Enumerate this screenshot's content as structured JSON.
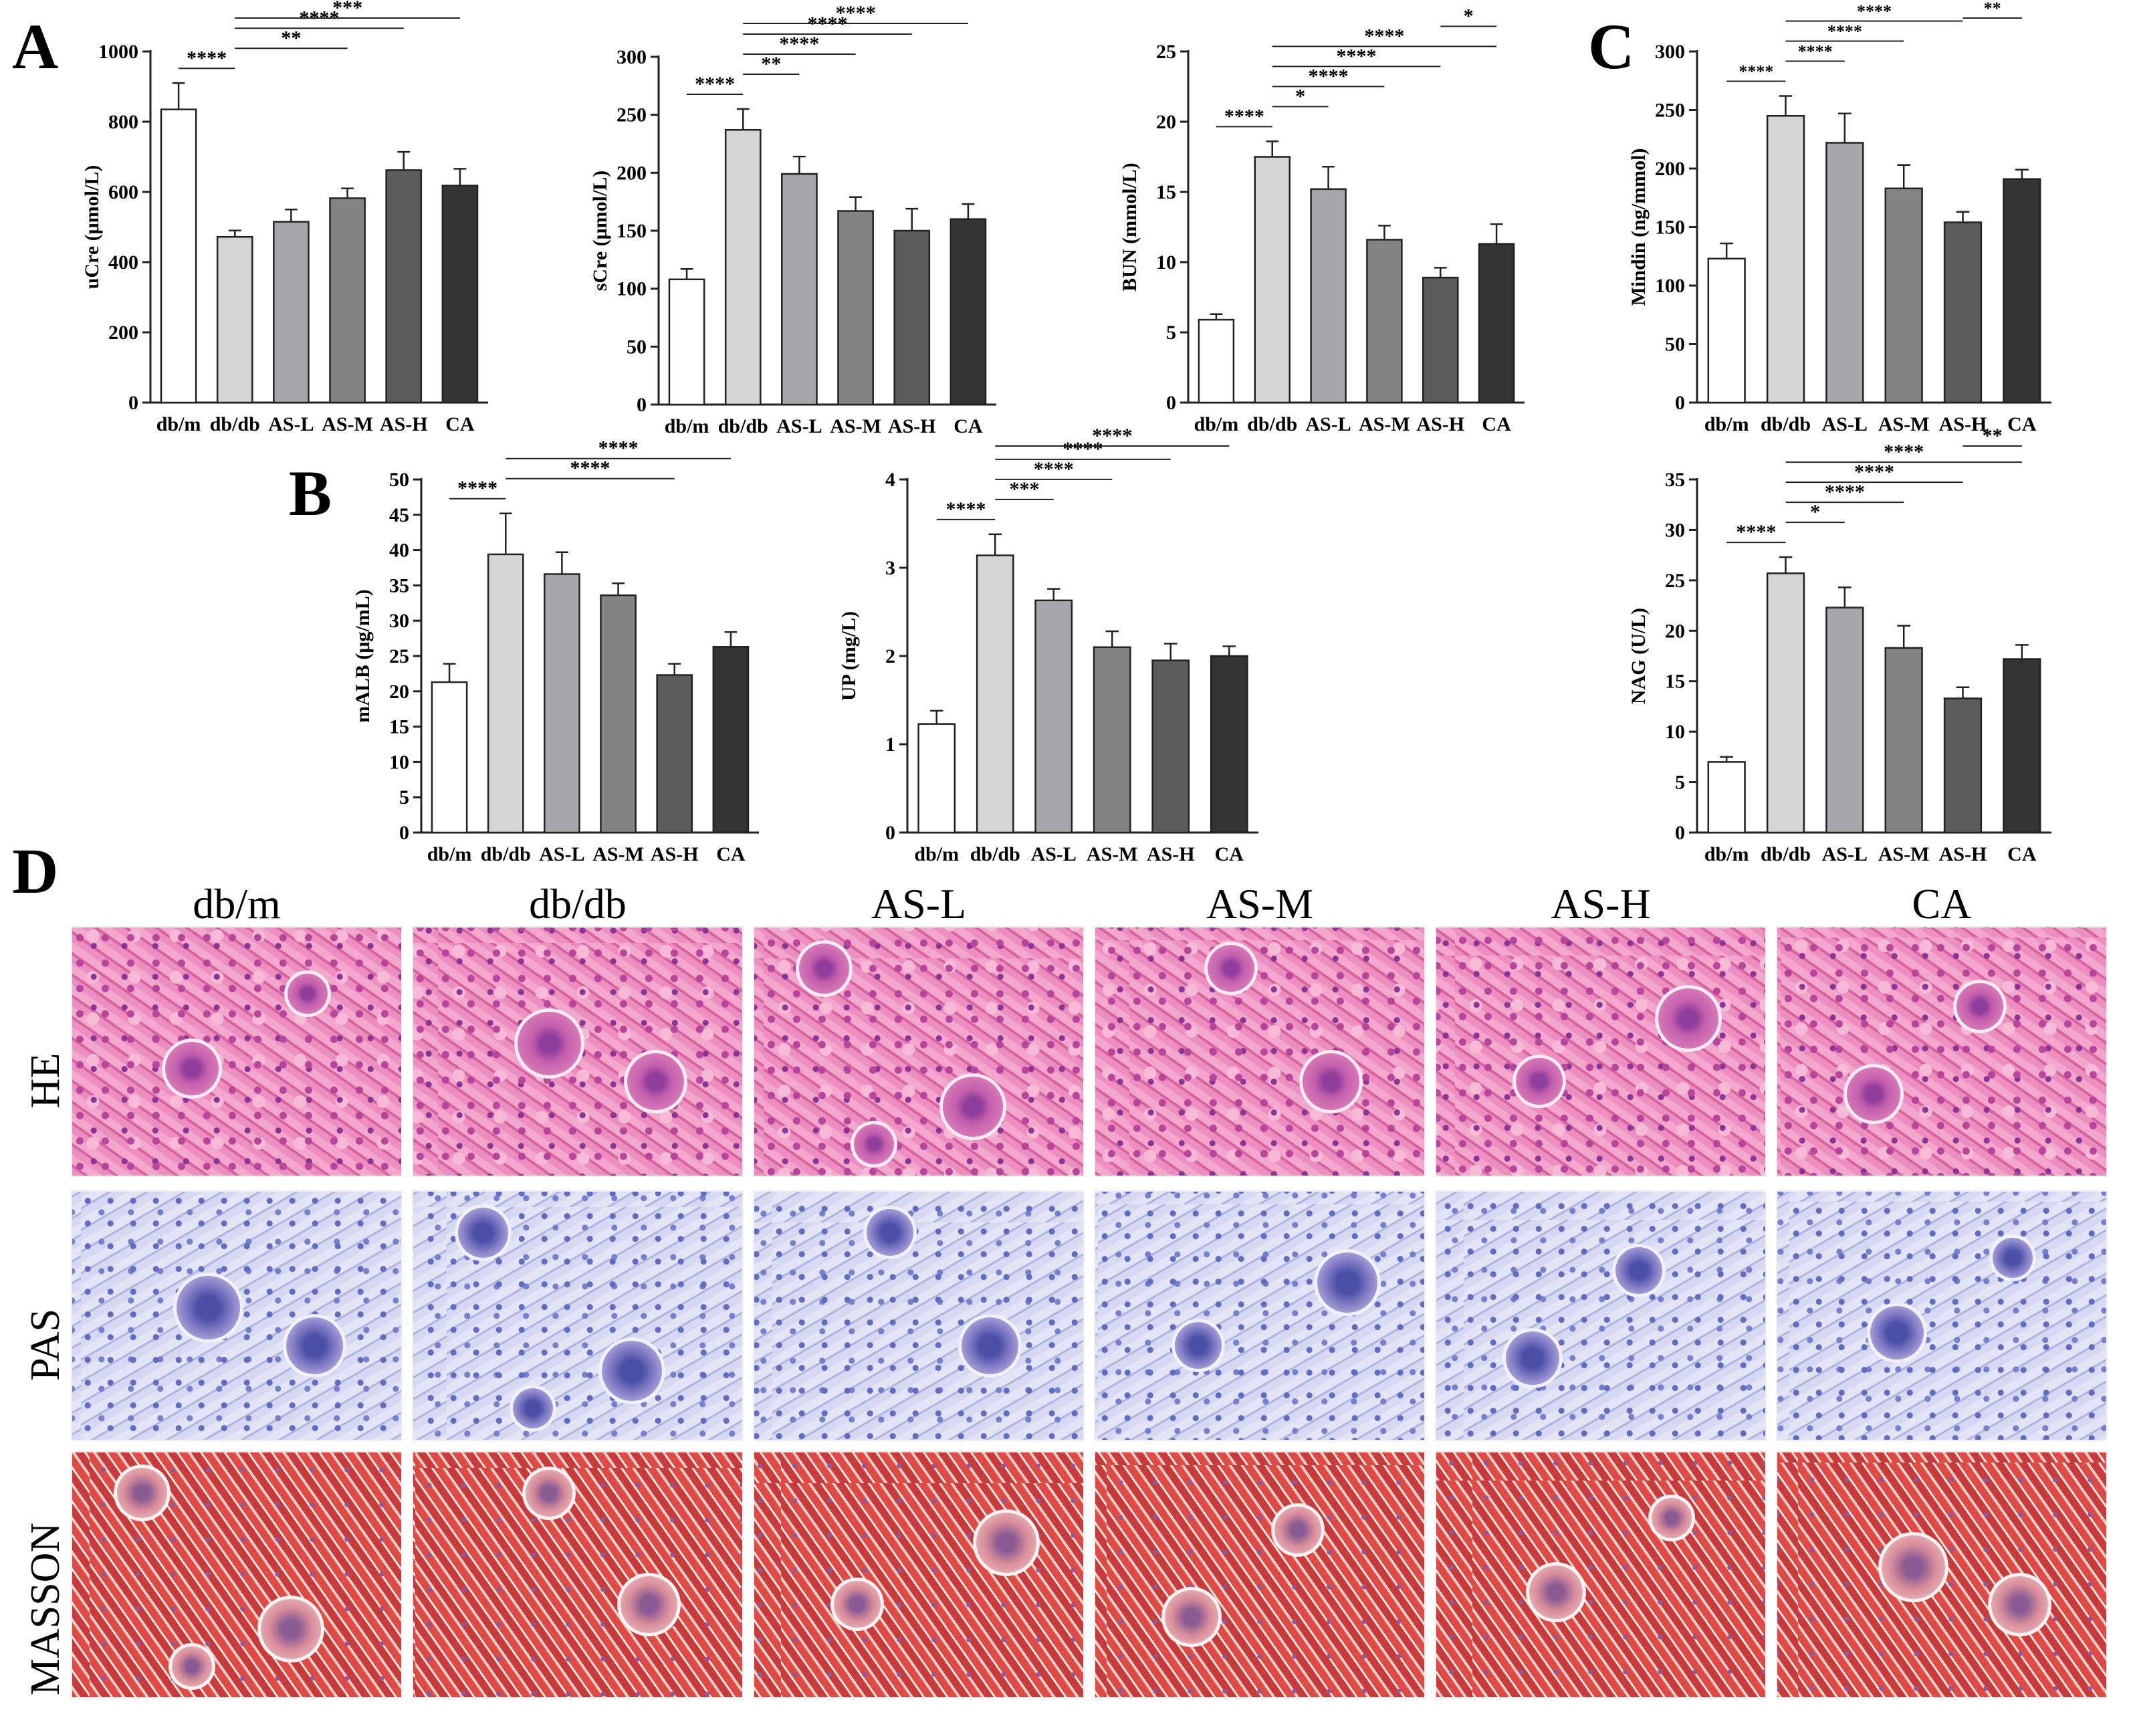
{
  "panel_letters": [
    "A",
    "B",
    "C",
    "D"
  ],
  "colors": {
    "bar_fills": [
      "#ffffff",
      "#d4d4d4",
      "#a7a7ab",
      "#848484",
      "#5c5c5c",
      "#333333"
    ],
    "stroke": "#222222"
  },
  "chart_data": [
    {
      "id": "ucre",
      "type": "bar",
      "panel": "A",
      "categories": [
        "db/m",
        "db/db",
        "AS-L",
        "AS-M",
        "AS-H",
        "CA"
      ],
      "values": [
        835,
        472,
        515,
        582,
        662,
        618
      ],
      "errors": [
        75,
        18,
        35,
        28,
        52,
        48
      ],
      "ylabel": "uCre (μmol/L)",
      "ylim": [
        0,
        1000
      ],
      "yticks": [
        0,
        200,
        400,
        600,
        800,
        1000
      ],
      "significance": [
        {
          "from": 0,
          "to": 1,
          "label": "****"
        },
        {
          "from": 1,
          "to": 3,
          "label": "**"
        },
        {
          "from": 1,
          "to": 4,
          "label": "****"
        },
        {
          "from": 1,
          "to": 5,
          "label": "***"
        }
      ]
    },
    {
      "id": "scre",
      "type": "bar",
      "panel": "A",
      "categories": [
        "db/m",
        "db/db",
        "AS-L",
        "AS-M",
        "AS-H",
        "CA"
      ],
      "values": [
        108,
        237,
        199,
        167,
        150,
        160
      ],
      "errors": [
        9,
        18,
        15,
        12,
        19,
        13
      ],
      "ylabel": "sCre (μmol/L)",
      "ylim": [
        0,
        300
      ],
      "yticks": [
        0,
        50,
        100,
        150,
        200,
        250,
        300
      ],
      "significance": [
        {
          "from": 0,
          "to": 1,
          "label": "****"
        },
        {
          "from": 1,
          "to": 2,
          "label": "**"
        },
        {
          "from": 1,
          "to": 3,
          "label": "****"
        },
        {
          "from": 1,
          "to": 4,
          "label": "****"
        },
        {
          "from": 1,
          "to": 5,
          "label": "****"
        }
      ]
    },
    {
      "id": "bun",
      "type": "bar",
      "panel": "A",
      "categories": [
        "db/m",
        "db/db",
        "AS-L",
        "AS-M",
        "AS-H",
        "CA"
      ],
      "values": [
        5.9,
        17.5,
        15.2,
        11.6,
        8.9,
        11.3
      ],
      "errors": [
        0.4,
        1.1,
        1.6,
        1.0,
        0.7,
        1.4
      ],
      "ylabel": "BUN (mmol/L)",
      "ylim": [
        0,
        25
      ],
      "yticks": [
        0,
        5,
        10,
        15,
        20,
        25
      ],
      "significance": [
        {
          "from": 0,
          "to": 1,
          "label": "****"
        },
        {
          "from": 1,
          "to": 2,
          "label": "*"
        },
        {
          "from": 1,
          "to": 3,
          "label": "****"
        },
        {
          "from": 1,
          "to": 4,
          "label": "****"
        },
        {
          "from": 1,
          "to": 5,
          "label": "****"
        },
        {
          "from": 4,
          "to": 5,
          "label": "*"
        }
      ]
    },
    {
      "id": "mindin",
      "type": "bar",
      "panel": "C",
      "categories": [
        "db/m",
        "db/db",
        "AS-L",
        "AS-M",
        "AS-H",
        "CA"
      ],
      "values": [
        123,
        245,
        222,
        183,
        154,
        191
      ],
      "errors": [
        13,
        17,
        25,
        20,
        9,
        8
      ],
      "ylabel": "Mindin (ng/mmol)",
      "ylim": [
        0,
        300
      ],
      "yticks": [
        0,
        50,
        100,
        150,
        200,
        250,
        300
      ],
      "significance": [
        {
          "from": 0,
          "to": 1,
          "label": "****"
        },
        {
          "from": 1,
          "to": 2,
          "label": "****"
        },
        {
          "from": 1,
          "to": 3,
          "label": "****"
        },
        {
          "from": 1,
          "to": 4,
          "label": "****"
        },
        {
          "from": 4,
          "to": 5,
          "label": "**"
        }
      ]
    },
    {
      "id": "malb",
      "type": "bar",
      "panel": "B",
      "categories": [
        "db/m",
        "db/db",
        "AS-L",
        "AS-M",
        "AS-H",
        "CA"
      ],
      "values": [
        21.3,
        39.4,
        36.6,
        33.6,
        22.3,
        26.3
      ],
      "errors": [
        2.6,
        5.8,
        3.1,
        1.7,
        1.6,
        2.1
      ],
      "ylabel": "mALB (μg/mL)",
      "ylim": [
        0,
        50
      ],
      "yticks": [
        0,
        5,
        10,
        15,
        20,
        25,
        30,
        35,
        40,
        45,
        50
      ],
      "significance": [
        {
          "from": 0,
          "to": 1,
          "label": "****"
        },
        {
          "from": 1,
          "to": 4,
          "label": "****"
        },
        {
          "from": 1,
          "to": 5,
          "label": "****"
        }
      ]
    },
    {
      "id": "up",
      "type": "bar",
      "panel": "B",
      "categories": [
        "db/m",
        "db/db",
        "AS-L",
        "AS-M",
        "AS-H",
        "CA"
      ],
      "values": [
        1.23,
        3.14,
        2.63,
        2.1,
        1.95,
        2.0
      ],
      "errors": [
        0.15,
        0.24,
        0.13,
        0.18,
        0.19,
        0.11
      ],
      "ylabel": "UP (mg/L)",
      "ylim": [
        0,
        4
      ],
      "yticks": [
        0,
        1,
        2,
        3,
        4
      ],
      "significance": [
        {
          "from": 0,
          "to": 1,
          "label": "****"
        },
        {
          "from": 1,
          "to": 2,
          "label": "***"
        },
        {
          "from": 1,
          "to": 3,
          "label": "****"
        },
        {
          "from": 1,
          "to": 4,
          "label": "****"
        },
        {
          "from": 1,
          "to": 5,
          "label": "****"
        }
      ]
    },
    {
      "id": "nag",
      "type": "bar",
      "panel": "C",
      "categories": [
        "db/m",
        "db/db",
        "AS-L",
        "AS-M",
        "AS-H",
        "CA"
      ],
      "values": [
        7.0,
        25.7,
        22.3,
        18.3,
        13.3,
        17.2
      ],
      "errors": [
        0.5,
        1.6,
        2.0,
        2.2,
        1.1,
        1.4
      ],
      "ylabel": "NAG (U/L)",
      "ylim": [
        0,
        35
      ],
      "yticks": [
        0,
        5,
        10,
        15,
        20,
        25,
        30,
        35
      ],
      "significance": [
        {
          "from": 0,
          "to": 1,
          "label": "****"
        },
        {
          "from": 1,
          "to": 2,
          "label": "*"
        },
        {
          "from": 1,
          "to": 3,
          "label": "****"
        },
        {
          "from": 1,
          "to": 4,
          "label": "****"
        },
        {
          "from": 1,
          "to": 5,
          "label": "****"
        },
        {
          "from": 4,
          "to": 5,
          "label": "**"
        }
      ]
    }
  ],
  "histology": {
    "columns": [
      "db/m",
      "db/db",
      "AS-L",
      "AS-M",
      "AS-H",
      "CA"
    ],
    "rows": [
      "HE",
      "PAS",
      "MASSON"
    ]
  }
}
